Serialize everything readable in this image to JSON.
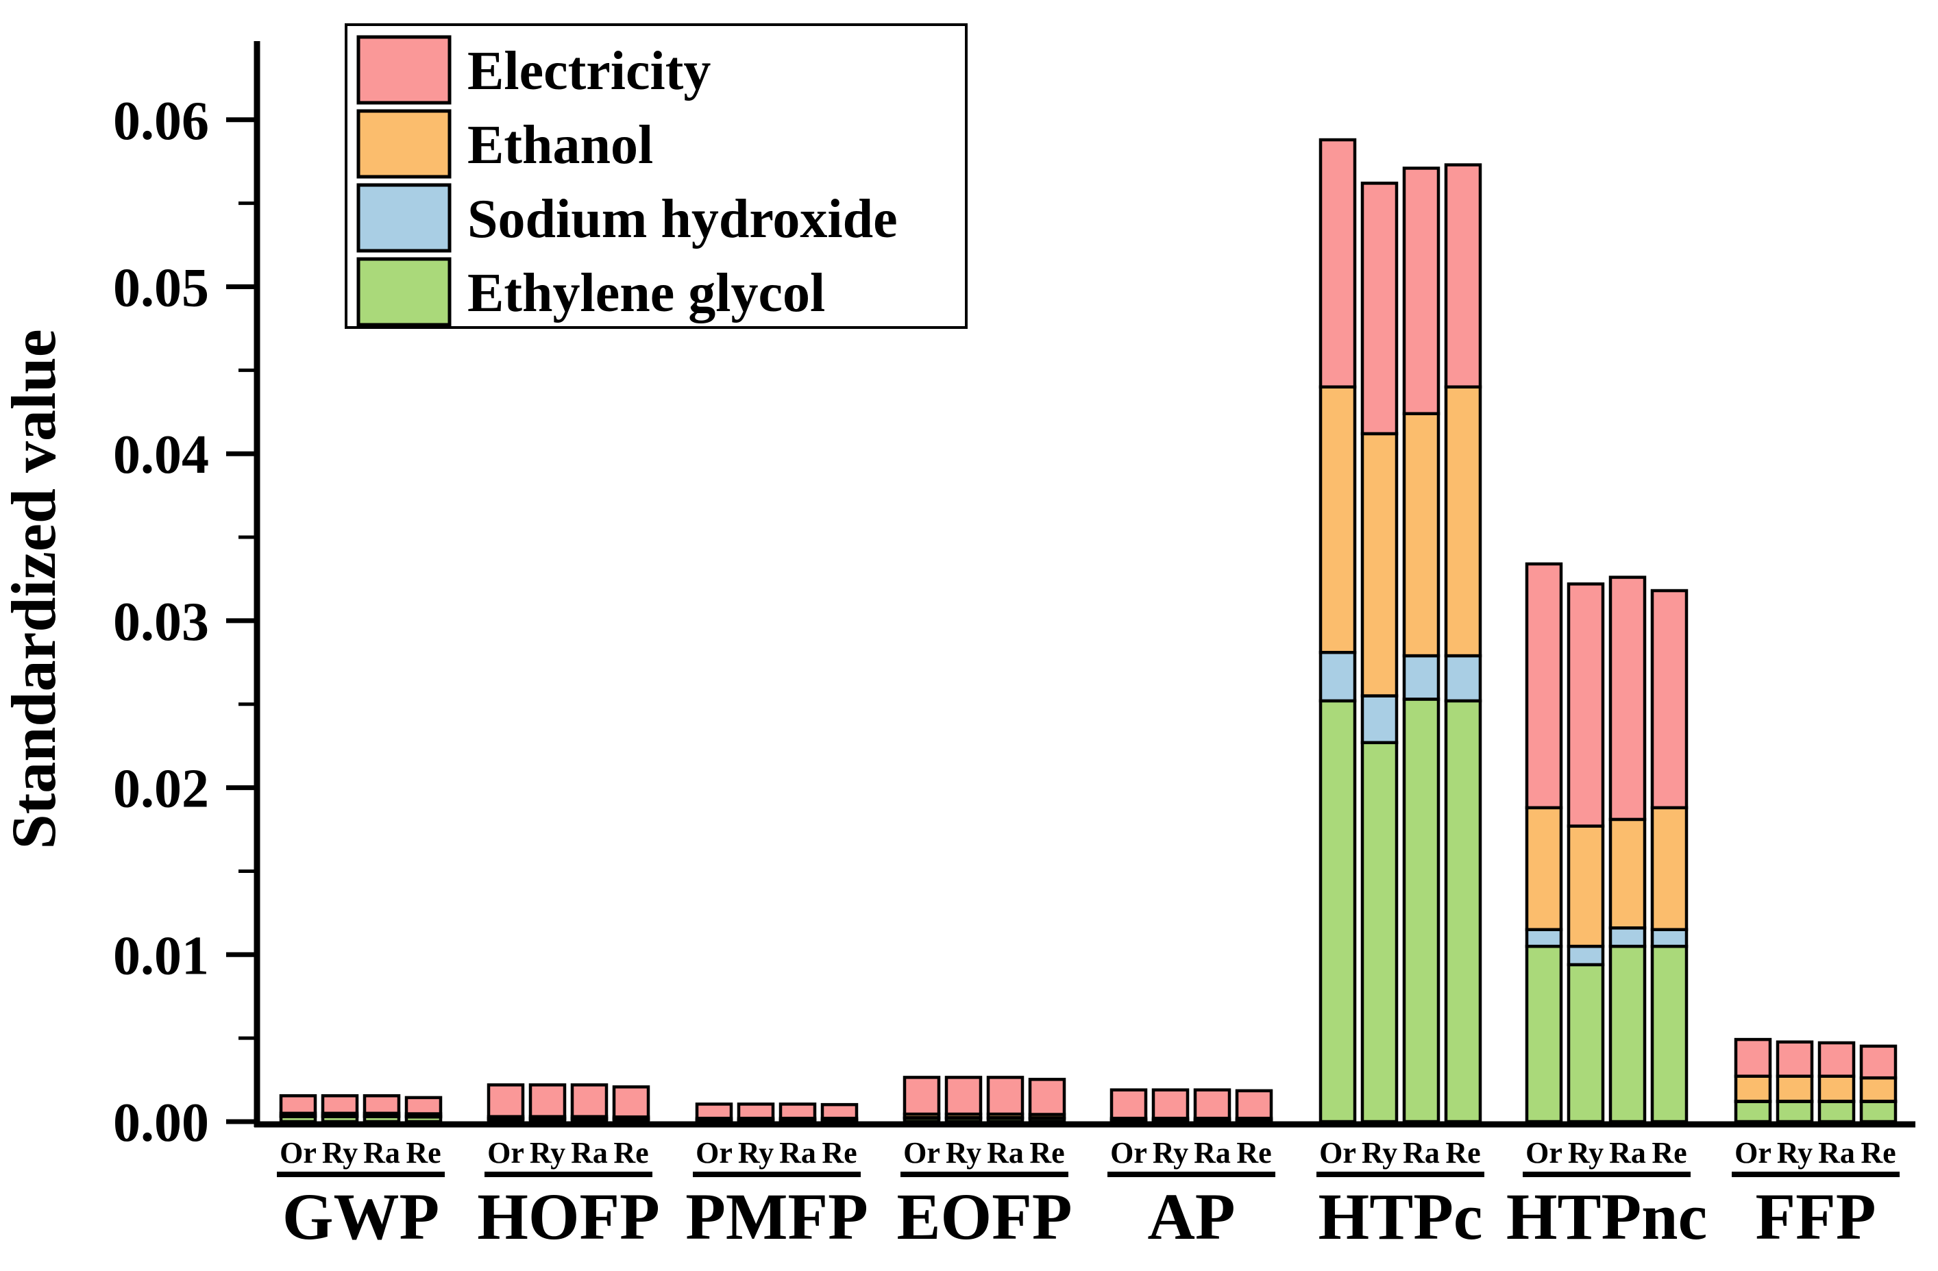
{
  "chart_data": {
    "type": "bar",
    "stacked": true,
    "title": "",
    "xlabel": "",
    "ylabel": "Standardized value",
    "ylim": [
      0,
      0.0645
    ],
    "y_major_step": 0.01,
    "y_minor_step": 0.005,
    "y_tick_labels": [
      "0.00",
      "0.01",
      "0.02",
      "0.03",
      "0.04",
      "0.05",
      "0.06"
    ],
    "y_tick_values": [
      0,
      0.01,
      0.02,
      0.03,
      0.04,
      0.05,
      0.06
    ],
    "y_minor_tick_values": [
      0.005,
      0.015,
      0.025,
      0.035,
      0.045,
      0.055
    ],
    "grid": false,
    "categories": [
      "GWP",
      "HOFP",
      "PMFP",
      "EOFP",
      "AP",
      "HTPc",
      "HTPnc",
      "FFP"
    ],
    "bar_labels": [
      "Or",
      "Ry",
      "Ra",
      "Re"
    ],
    "legend": {
      "position": "top-left",
      "entries": [
        "Electricity",
        "Ethanol",
        "Sodium hydroxide",
        "Ethylene glycol"
      ]
    },
    "colors": {
      "Electricity": "#FA9898",
      "Ethanol": "#FBBD6D",
      "Sodium hydroxide": "#A9CEE4",
      "Ethylene glycol": "#AAD97A",
      "bar_outline": "#000000",
      "axis": "#000000",
      "background": "#FFFFFF"
    },
    "stacking_order_bottom_to_top": [
      "Ethylene glycol",
      "Sodium hydroxide",
      "Ethanol",
      "Electricity"
    ],
    "series": [
      {
        "name": "Ethylene glycol",
        "values": [
          [
            0.0003,
            0.0003,
            0.0003,
            0.00028
          ],
          [
            0.00015,
            0.00015,
            0.00015,
            0.00014
          ],
          [
            8e-05,
            8e-05,
            8e-05,
            8e-05
          ],
          [
            0.0002,
            0.0002,
            0.0002,
            0.00019
          ],
          [
            8e-05,
            8e-05,
            8e-05,
            8e-05
          ],
          [
            0.0252,
            0.0227,
            0.0253,
            0.0252
          ],
          [
            0.0105,
            0.0094,
            0.0105,
            0.0105
          ],
          [
            0.0012,
            0.0012,
            0.0012,
            0.0012
          ]
        ]
      },
      {
        "name": "Sodium hydroxide",
        "values": [
          [
            4e-05,
            4e-05,
            4e-05,
            4e-05
          ],
          [
            3e-05,
            3e-05,
            3e-05,
            3e-05
          ],
          [
            2e-05,
            2e-05,
            2e-05,
            2e-05
          ],
          [
            4e-05,
            4e-05,
            4e-05,
            4e-05
          ],
          [
            2e-05,
            2e-05,
            2e-05,
            2e-05
          ],
          [
            0.0029,
            0.0028,
            0.0026,
            0.0027
          ],
          [
            0.001,
            0.0011,
            0.0011,
            0.001
          ],
          [
            2e-05,
            2e-05,
            2e-05,
            2e-05
          ]
        ]
      },
      {
        "name": "Ethanol",
        "values": [
          [
            0.00016,
            0.00016,
            0.00016,
            0.00015
          ],
          [
            0.00012,
            0.00012,
            0.00012,
            0.00011
          ],
          [
            0.0001,
            0.0001,
            0.0001,
            0.0001
          ],
          [
            0.00021,
            0.00021,
            0.00021,
            0.0002
          ],
          [
            0.0001,
            0.0001,
            0.0001,
            0.0001
          ],
          [
            0.0159,
            0.0157,
            0.0145,
            0.0161
          ],
          [
            0.0073,
            0.0072,
            0.0065,
            0.0073
          ],
          [
            0.0015,
            0.0015,
            0.0015,
            0.0014
          ]
        ]
      },
      {
        "name": "Electricity",
        "values": [
          [
            0.00105,
            0.00105,
            0.00105,
            0.00097
          ],
          [
            0.0019,
            0.0019,
            0.0019,
            0.0018
          ],
          [
            0.00085,
            0.00085,
            0.00085,
            0.00082
          ],
          [
            0.0022,
            0.0022,
            0.0022,
            0.0021
          ],
          [
            0.0017,
            0.0017,
            0.0017,
            0.00165
          ],
          [
            0.0148,
            0.015,
            0.0147,
            0.0133
          ],
          [
            0.0146,
            0.0145,
            0.0145,
            0.013
          ],
          [
            0.0022,
            0.00205,
            0.002,
            0.0019
          ]
        ]
      }
    ]
  }
}
